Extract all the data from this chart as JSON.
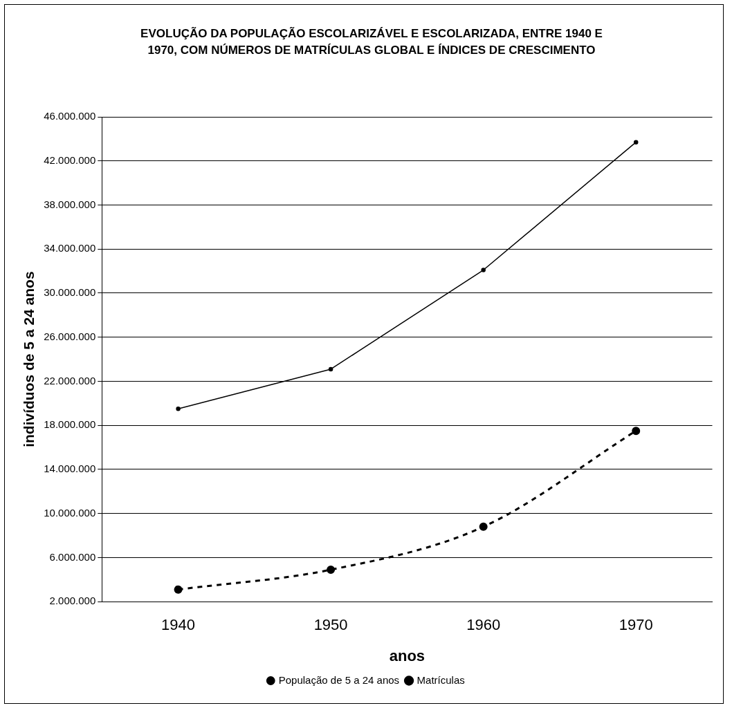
{
  "chart_data": {
    "type": "line",
    "title": "EVOLUÇÃO DA POPULAÇÃO ESCOLARIZÁVEL E ESCOLARIZADA, ENTRE 1940 E 1970, COM NÚMEROS DE MATRÍCULAS GLOBAL E ÍNDICES DE CRESCIMENTO",
    "xlabel": "anos",
    "ylabel": "indivíduos de 5 a 24 anos",
    "categories": [
      "1940",
      "1950",
      "1960",
      "1970"
    ],
    "series": [
      {
        "name": "População de 5 a 24 anos",
        "color": "#000000",
        "values": [
          19500000,
          23100000,
          32100000,
          43700000
        ],
        "line_style": "solid",
        "marker": "circle"
      },
      {
        "name": "Matrículas",
        "color": "#000000",
        "values": [
          3100000,
          4900000,
          8800000,
          17500000
        ],
        "line_style": "dashed",
        "marker": "circle"
      }
    ],
    "ylim": [
      2000000,
      46000000
    ],
    "yticks": [
      {
        "value": 2000000,
        "label": "2.000.000"
      },
      {
        "value": 6000000,
        "label": "6.000.000"
      },
      {
        "value": 10000000,
        "label": "10.000.000"
      },
      {
        "value": 14000000,
        "label": "14.000.000"
      },
      {
        "value": 18000000,
        "label": "18.000.000"
      },
      {
        "value": 22000000,
        "label": "22.000.000"
      },
      {
        "value": 26000000,
        "label": "26.000.000"
      },
      {
        "value": 30000000,
        "label": "30.000.000"
      },
      {
        "value": 34000000,
        "label": "34.000.000"
      },
      {
        "value": 38000000,
        "label": "38.000.000"
      },
      {
        "value": 42000000,
        "label": "42.000.000"
      },
      {
        "value": 46000000,
        "label": "46.000.000"
      }
    ],
    "grid": "y",
    "legend": "bottom"
  }
}
